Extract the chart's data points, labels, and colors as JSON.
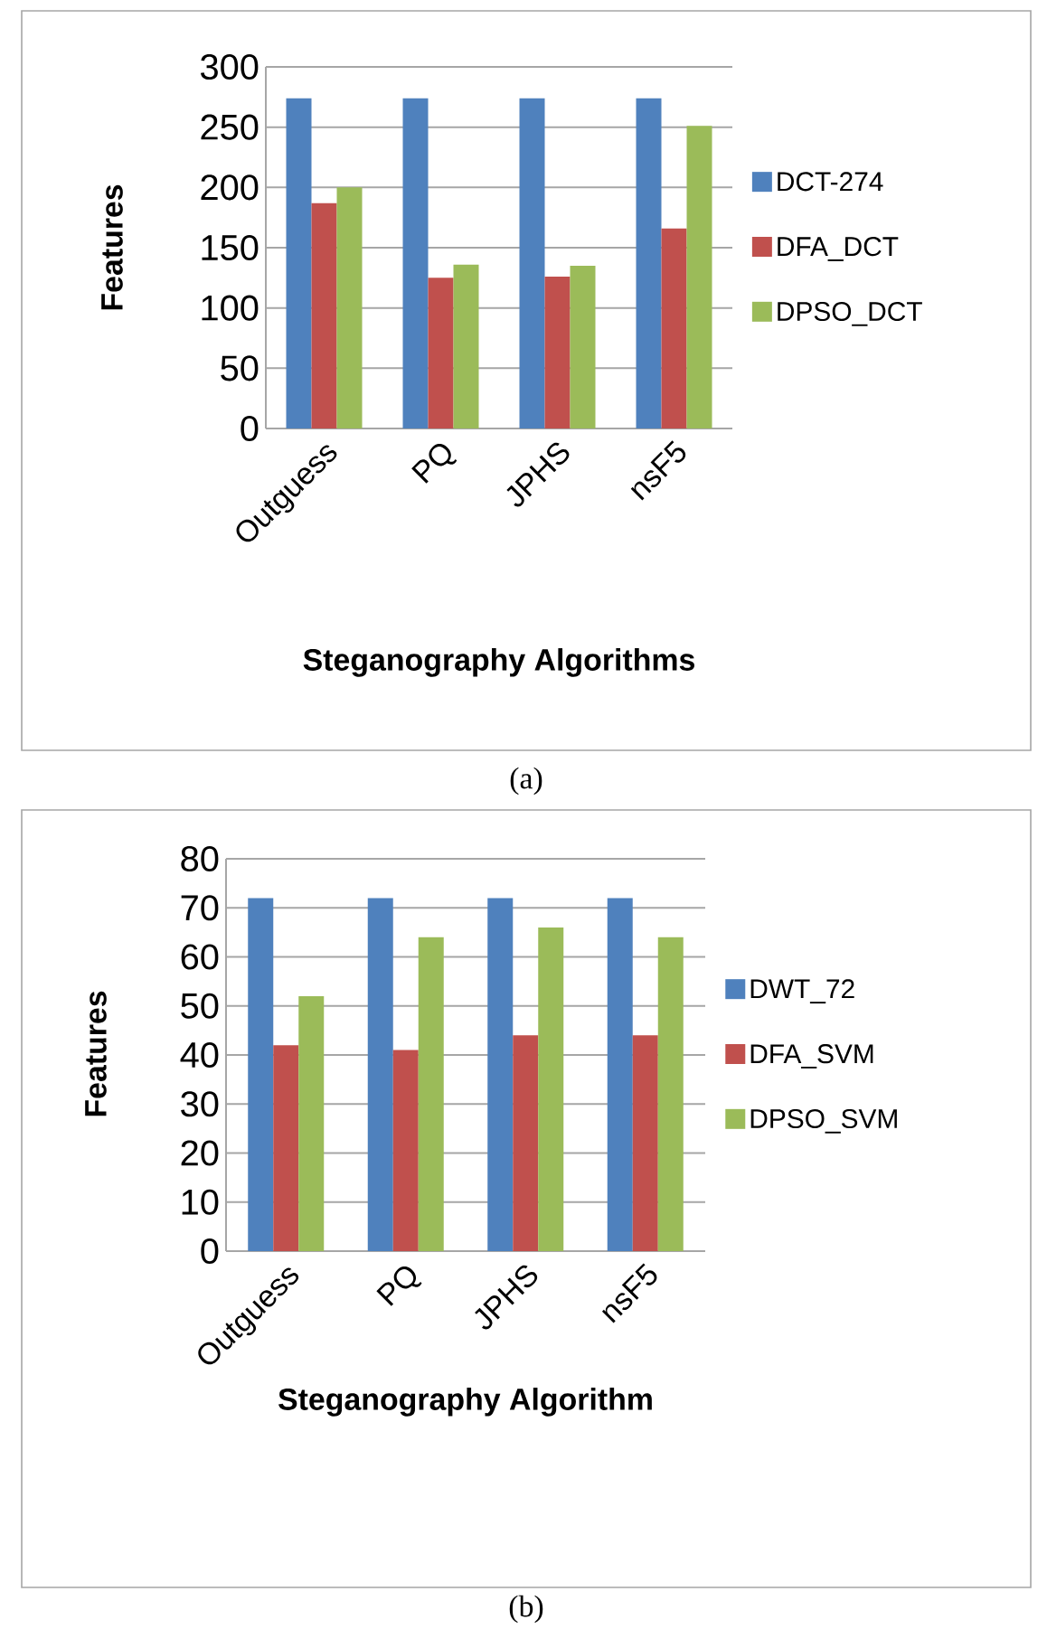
{
  "chart_data": [
    {
      "type": "bar",
      "xlabel": "Steganography Algorithms",
      "ylabel": "Features",
      "categories": [
        "Outguess",
        "PQ",
        "JPHS",
        "nsF5"
      ],
      "series": [
        {
          "name": "DCT-274",
          "color": "#4f81bd",
          "values": [
            274,
            274,
            274,
            274
          ]
        },
        {
          "name": "DFA_DCT",
          "color": "#c0504d",
          "values": [
            187,
            125,
            126,
            166
          ]
        },
        {
          "name": "DPSO_DCT",
          "color": "#9bbb59",
          "values": [
            200,
            136,
            135,
            251
          ]
        }
      ],
      "ylim": [
        0,
        300
      ],
      "yticks": [
        0,
        50,
        100,
        150,
        200,
        250,
        300
      ],
      "grid": "y",
      "legend": "right",
      "annotations": [
        "(a)"
      ]
    },
    {
      "type": "bar",
      "xlabel": "Steganography Algorithm",
      "ylabel": "Features",
      "categories": [
        "Outguess",
        "PQ",
        "JPHS",
        "nsF5"
      ],
      "series": [
        {
          "name": "DWT_72",
          "color": "#4f81bd",
          "values": [
            72,
            72,
            72,
            72
          ]
        },
        {
          "name": "DFA_SVM",
          "color": "#c0504d",
          "values": [
            42,
            41,
            44,
            44
          ]
        },
        {
          "name": "DPSO_SVM",
          "color": "#9bbb59",
          "values": [
            52,
            64,
            66,
            64
          ]
        }
      ],
      "ylim": [
        0,
        80
      ],
      "yticks": [
        0,
        10,
        20,
        30,
        40,
        50,
        60,
        70,
        80
      ],
      "grid": "y",
      "legend": "right",
      "annotations": [
        "(b)"
      ]
    }
  ]
}
